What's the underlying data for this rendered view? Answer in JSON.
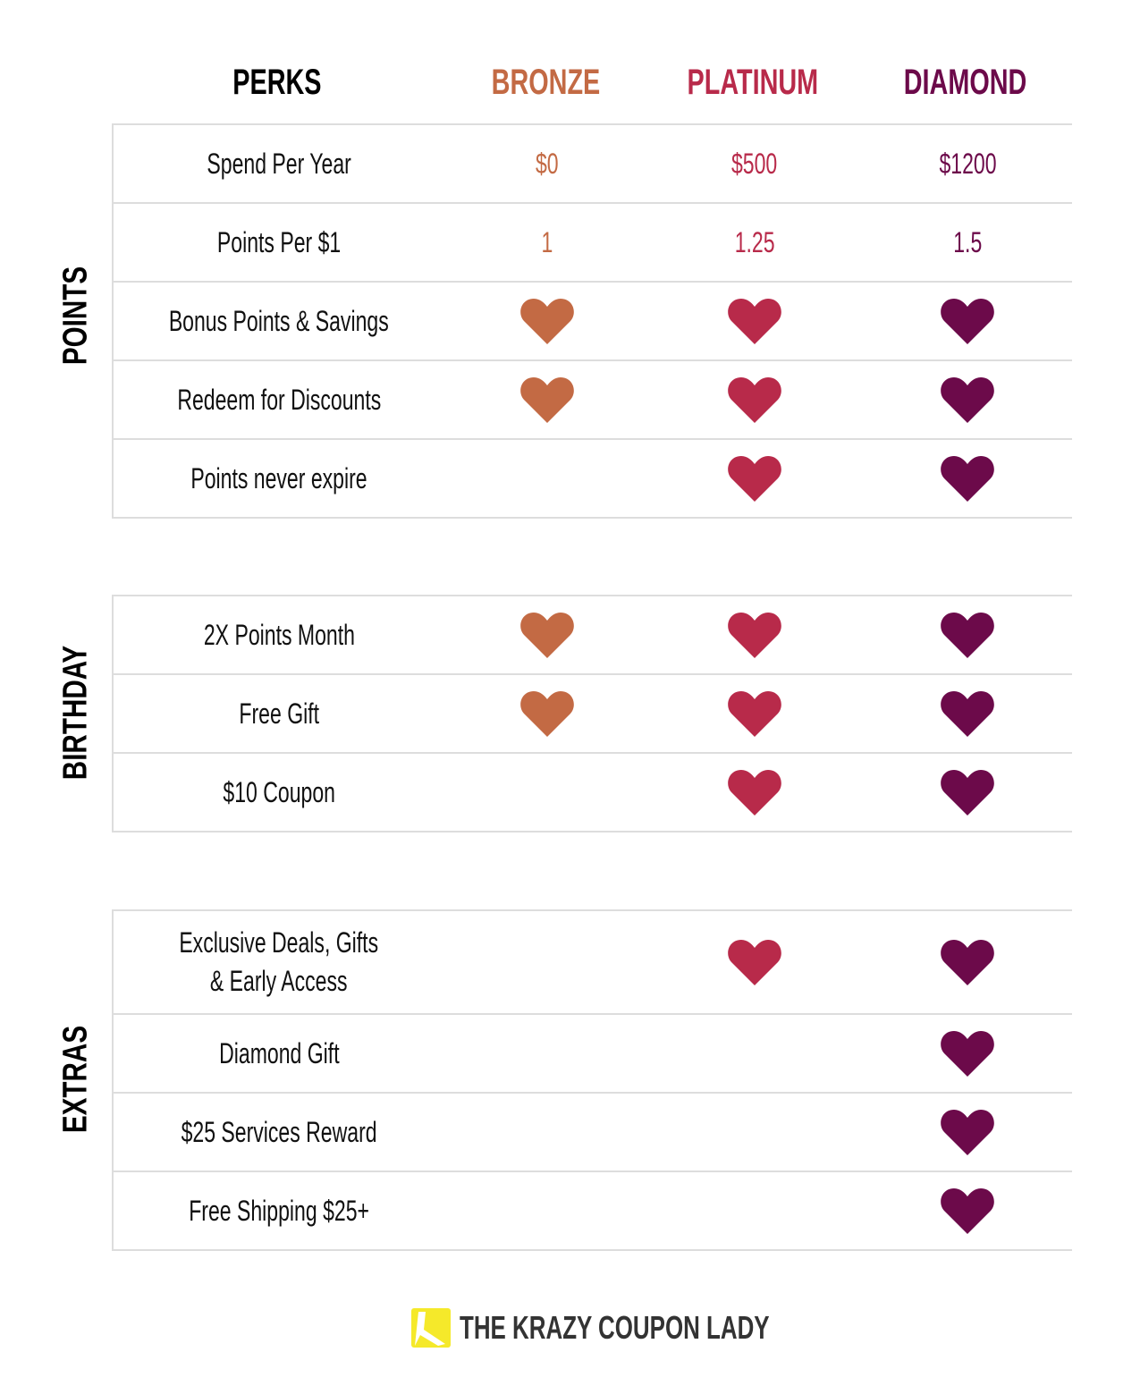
{
  "header": {
    "perks": "PERKS",
    "tiers": [
      "BRONZE",
      "PLATINUM",
      "DIAMOND"
    ]
  },
  "colors": {
    "bronze": "#c36a44",
    "platinum": "#b82a4a",
    "diamond": "#6c0a4a",
    "logo": "#f5e92a"
  },
  "sections": [
    {
      "label": "POINTS",
      "rows": [
        {
          "perk": "Spend Per Year",
          "values": [
            "$0",
            "$500",
            "$1200"
          ]
        },
        {
          "perk": "Points Per $1",
          "values": [
            "1",
            "1.25",
            "1.5"
          ]
        },
        {
          "perk": "Bonus Points & Savings",
          "hearts": [
            true,
            true,
            true
          ]
        },
        {
          "perk": "Redeem for Discounts",
          "hearts": [
            true,
            true,
            true
          ]
        },
        {
          "perk": "Points never expire",
          "hearts": [
            false,
            true,
            true
          ]
        }
      ]
    },
    {
      "label": "BIRTHDAY",
      "rows": [
        {
          "perk": "2X Points Month",
          "hearts": [
            true,
            true,
            true
          ]
        },
        {
          "perk": "Free Gift",
          "hearts": [
            true,
            true,
            true
          ]
        },
        {
          "perk": "$10 Coupon",
          "hearts": [
            false,
            true,
            true
          ]
        }
      ]
    },
    {
      "label": "EXTRAS",
      "rows": [
        {
          "perk": "Exclusive Deals, Gifts",
          "perk2": "& Early Access",
          "hearts": [
            false,
            true,
            true
          ]
        },
        {
          "perk": "Diamond Gift",
          "hearts": [
            false,
            false,
            true
          ]
        },
        {
          "perk": "$25 Services Reward",
          "hearts": [
            false,
            false,
            true
          ]
        },
        {
          "perk": "Free Shipping $25+",
          "hearts": [
            false,
            false,
            true
          ]
        }
      ]
    }
  ],
  "footer": {
    "brand": "THE KRAZY COUPON LADY"
  }
}
